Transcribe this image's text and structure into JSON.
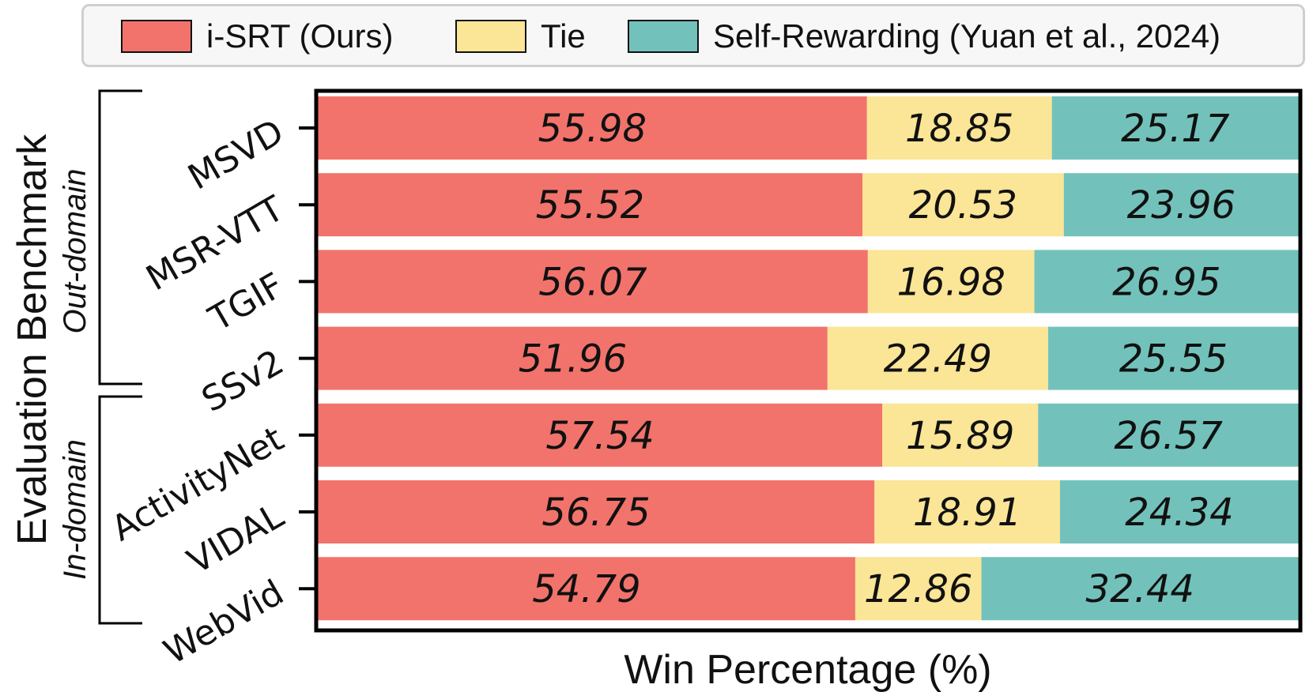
{
  "chart_data": {
    "type": "bar",
    "orientation": "horizontal",
    "stacked": true,
    "categories": [
      "MSVD",
      "MSR-VTT",
      "TGIF",
      "SSv2",
      "ActivityNet",
      "VIDAL",
      "WebVid"
    ],
    "series": [
      {
        "name": "i-SRT (Ours)",
        "color": "#f2736b",
        "values": [
          55.98,
          55.52,
          56.07,
          51.96,
          57.54,
          56.75,
          54.79
        ]
      },
      {
        "name": "Tie",
        "color": "#fbe596",
        "values": [
          18.85,
          20.53,
          16.98,
          22.49,
          15.89,
          18.91,
          12.86
        ]
      },
      {
        "name": "Self-Rewarding (Yuan et al., 2024)",
        "color": "#72c2bb",
        "values": [
          25.17,
          23.96,
          26.95,
          25.55,
          26.57,
          24.34,
          32.44
        ]
      }
    ],
    "xlabel": "Win Percentage (%)",
    "ylabel": "Evaluation Benchmark",
    "xlim": [
      0,
      100
    ],
    "groups": [
      {
        "label": "Out-domain",
        "categories": [
          "MSVD",
          "MSR-VTT",
          "TGIF",
          "SSv2"
        ]
      },
      {
        "label": "In-domain",
        "categories": [
          "ActivityNet",
          "VIDAL",
          "WebVid"
        ]
      }
    ],
    "legend_position": "top",
    "grid": false
  }
}
